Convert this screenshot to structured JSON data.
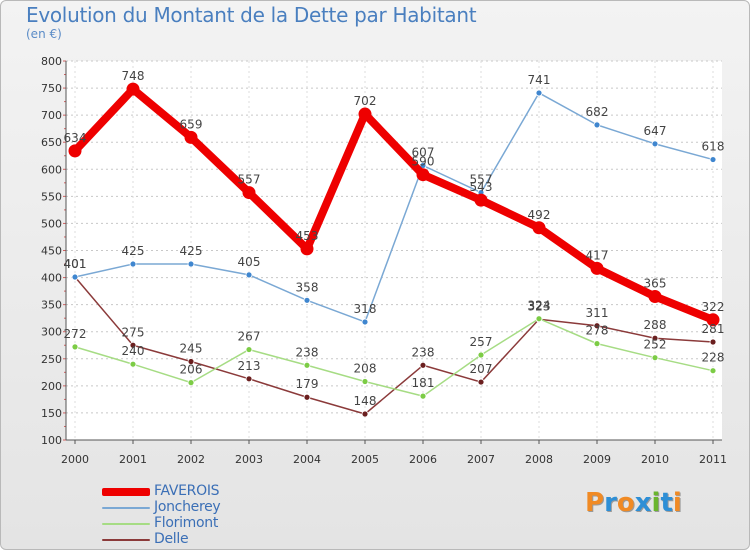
{
  "header": {
    "title": "Evolution du Montant de la Dette par Habitant",
    "subtitle": "(en €)"
  },
  "brand": {
    "text": "Proxiti",
    "letter_colors": [
      "#f08a24",
      "#2e8fd6",
      "#f08a24",
      "#2e8fd6",
      "#6bb52e",
      "#2e8fd6",
      "#f08a24"
    ]
  },
  "chart_data": {
    "type": "line",
    "title": "Evolution du Montant de la Dette par Habitant",
    "subtitle": "(en €)",
    "xlabel": "",
    "ylabel": "",
    "x": [
      "2000",
      "2001",
      "2002",
      "2003",
      "2004",
      "2005",
      "2006",
      "2007",
      "2008",
      "2009",
      "2010",
      "2011"
    ],
    "ylim": [
      100,
      800
    ],
    "yticks": [
      100,
      150,
      200,
      250,
      300,
      350,
      400,
      450,
      500,
      550,
      600,
      650,
      700,
      750,
      800
    ],
    "grid": "horizontal dashed",
    "legend_position": "bottom-left",
    "series": [
      {
        "name": "FAVEROIS",
        "color": "#ee0000",
        "point_color": "#ee0000",
        "emphasis": true,
        "values": [
          634,
          748,
          659,
          557,
          453,
          702,
          590,
          543,
          492,
          417,
          365,
          322
        ]
      },
      {
        "name": "Joncherey",
        "color": "#7aa8d4",
        "point_color": "#3f86cf",
        "values": [
          401,
          425,
          425,
          405,
          358,
          318,
          607,
          557,
          741,
          682,
          647,
          618
        ]
      },
      {
        "name": "Florimont",
        "color": "#a6dc84",
        "point_color": "#7ccc45",
        "values": [
          272,
          240,
          206,
          267,
          238,
          208,
          181,
          257,
          324,
          278,
          252,
          228
        ]
      },
      {
        "name": "Delle",
        "color": "#8b3a3a",
        "point_color": "#6b1f1f",
        "values": [
          401,
          275,
          245,
          213,
          179,
          148,
          238,
          207,
          323,
          311,
          288,
          281
        ]
      }
    ]
  }
}
